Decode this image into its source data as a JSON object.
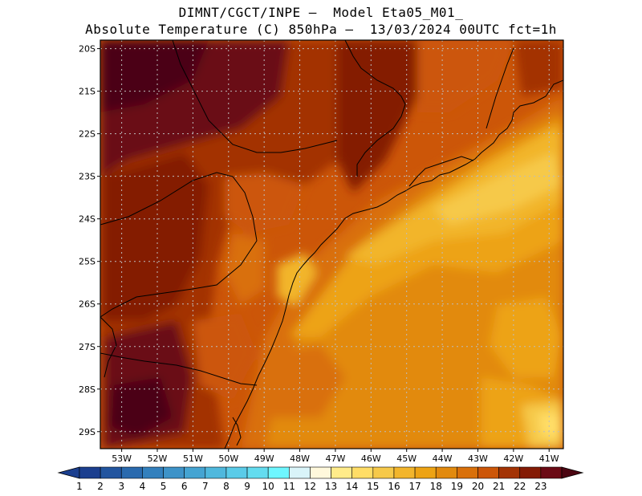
{
  "header": {
    "line1": "DIMNT/CGCT/INPE —  Model Eta05_M01_",
    "line2": "Absolute Temperature (C) 850hPa —  13/03/2024 00UTC fct=1h"
  },
  "map": {
    "lat_labels": [
      "20S",
      "21S",
      "22S",
      "23S",
      "24S",
      "25S",
      "26S",
      "27S",
      "28S",
      "29S"
    ],
    "lon_labels": [
      "53W",
      "52W",
      "51W",
      "50W",
      "49W",
      "48W",
      "47W",
      "46W",
      "45W",
      "44W",
      "43W",
      "42W",
      "41W"
    ],
    "extent": {
      "lon_min": -53.6,
      "lon_max": -40.6,
      "lat_min": -29.4,
      "lat_max": -19.8
    },
    "gridlines": true
  },
  "colorbar": {
    "labels": [
      "1",
      "2",
      "3",
      "4",
      "5",
      "6",
      "7",
      "8",
      "9",
      "10",
      "11",
      "12",
      "13",
      "14",
      "15",
      "16",
      "17",
      "18",
      "19",
      "20",
      "21",
      "22",
      "23"
    ],
    "colors": [
      "#1b3f8f",
      "#22559f",
      "#2a6aae",
      "#3380bd",
      "#3e93c8",
      "#45a4d2",
      "#4fb8dd",
      "#5acbe8",
      "#63dcef",
      "#6ef6ff",
      "#d9f4f9",
      "#fff8dc",
      "#ffeb8a",
      "#ffdd66",
      "#f6c94a",
      "#f2b52c",
      "#eda314",
      "#e28a0e",
      "#d9700a",
      "#cc5608",
      "#a33304",
      "#841b05",
      "#6b0a15",
      "#4c0612"
    ],
    "under_color": "#1b3f8f",
    "over_color": "#4c0612"
  }
}
